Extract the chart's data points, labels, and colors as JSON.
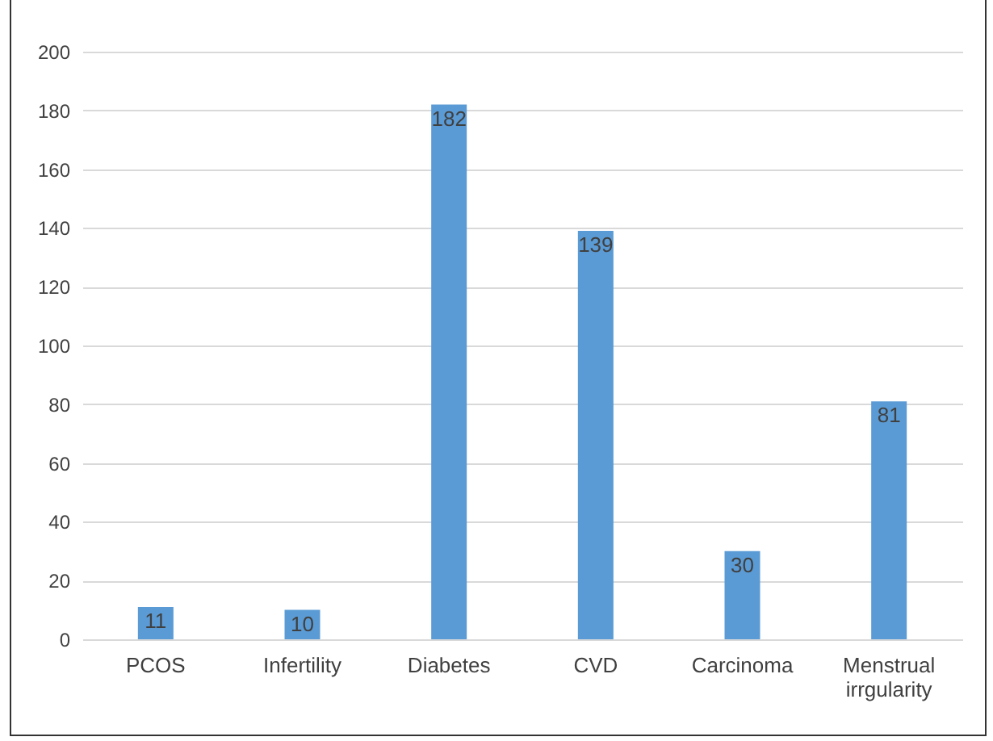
{
  "chart_data": {
    "type": "bar",
    "categories": [
      "PCOS",
      "Infertility",
      "Diabetes",
      "CVD",
      "Carcinoma",
      "Menstrual irrgularity"
    ],
    "values": [
      11,
      10,
      182,
      139,
      30,
      81
    ],
    "color": "#5b9bd5",
    "ylim": [
      0,
      200
    ],
    "yticks": [
      0,
      20,
      40,
      60,
      80,
      100,
      120,
      140,
      160,
      180,
      200
    ],
    "grid": "y",
    "data_labels": true
  }
}
